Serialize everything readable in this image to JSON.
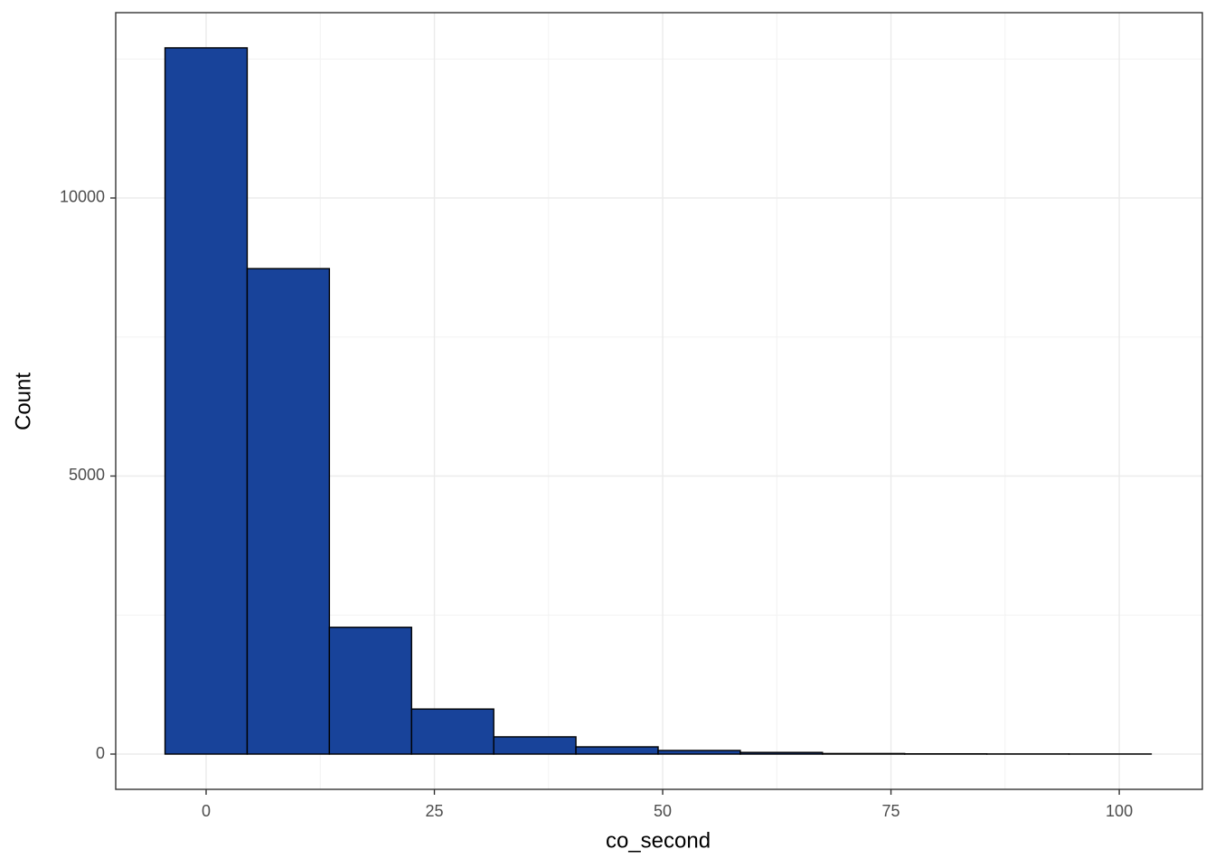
{
  "chart_data": {
    "type": "histogram",
    "x_label": "co_second",
    "y_label": "Count",
    "bins": [
      -4.5,
      4.5,
      13.5,
      22.5,
      31.5,
      40.5,
      49.5,
      58.5,
      67.5,
      76.5,
      85.5,
      94.5,
      103.5
    ],
    "counts": [
      12700,
      8730,
      2280,
      810,
      310,
      130,
      65,
      30,
      10,
      5,
      3,
      2
    ],
    "color": "#18439a",
    "edge_color": "#000000",
    "xlim": [
      -9.9,
      109.1
    ],
    "ylim": [
      -634,
      13333
    ],
    "xticks": [
      0,
      25,
      50,
      75,
      100
    ],
    "yticks": [
      0,
      5000,
      10000
    ],
    "x_minor_ticks": [
      12.5,
      37.5,
      62.5,
      87.5
    ],
    "y_minor_ticks": [
      2500,
      7500,
      12500
    ],
    "grid": true
  }
}
